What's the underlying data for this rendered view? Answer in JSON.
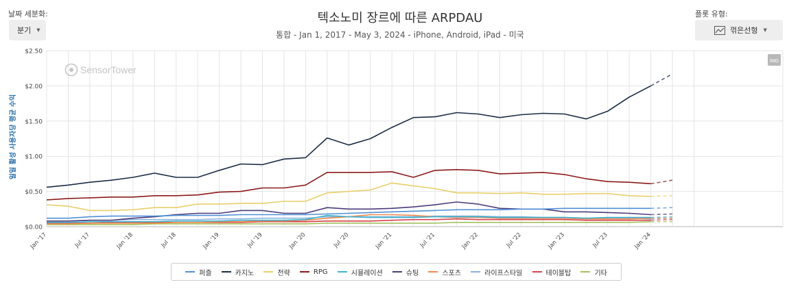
{
  "controls": {
    "granularity_label": "날짜 세분화:",
    "granularity_value": "분기",
    "plot_type_label": "플롯 유형:",
    "plot_type_value": "꺾은선형"
  },
  "watermark": {
    "brand": "SensorTower",
    "badge": "IMG"
  },
  "chart_data": {
    "type": "line",
    "title": "텍소노미 장르에 따른 ARPDAU",
    "subtitle": "통합 - Jan 1, 2017 - May 3, 2024 - iPhone, Android, iPad - 미국",
    "ylabel": "일일 활성 사용자당 평균 수익",
    "xlabel": "",
    "ylim": [
      0,
      2.5
    ],
    "y_ticks": [
      0,
      0.5,
      1.0,
      1.5,
      2.0,
      2.5
    ],
    "y_tick_labels": [
      "$0.00",
      "$0.50",
      "$1.00",
      "$1.50",
      "$2.00",
      "$2.50"
    ],
    "x_tick_labels": [
      "Jan '17",
      "Jul '17",
      "Jan '18",
      "Jul '18",
      "Jan '19",
      "Jul '19",
      "Jan '20",
      "Jul '20",
      "Jan '21",
      "Jul '21",
      "Jan '22",
      "Jul '22",
      "Jan '23",
      "Jul '23",
      "Jan '24"
    ],
    "x": [
      "2017-01",
      "2017-04",
      "2017-07",
      "2017-10",
      "2018-01",
      "2018-04",
      "2018-07",
      "2018-10",
      "2019-01",
      "2019-04",
      "2019-07",
      "2019-10",
      "2020-01",
      "2020-04",
      "2020-07",
      "2020-10",
      "2021-01",
      "2021-04",
      "2021-07",
      "2021-10",
      "2022-01",
      "2022-04",
      "2022-07",
      "2022-10",
      "2023-01",
      "2023-04",
      "2023-07",
      "2023-10",
      "2024-01",
      "2024-04"
    ],
    "projected_from_index": 28,
    "grid": true,
    "legend_position": "bottom",
    "series": [
      {
        "name": "퍼즐",
        "color": "#4f8fd6",
        "values": [
          0.12,
          0.12,
          0.14,
          0.15,
          0.15,
          0.15,
          0.16,
          0.16,
          0.16,
          0.17,
          0.17,
          0.17,
          0.17,
          0.18,
          0.19,
          0.2,
          0.21,
          0.22,
          0.23,
          0.24,
          0.24,
          0.24,
          0.25,
          0.25,
          0.26,
          0.26,
          0.26,
          0.26,
          0.26,
          0.27
        ]
      },
      {
        "name": "카지노",
        "color": "#1a2b45",
        "values": [
          0.56,
          0.59,
          0.63,
          0.66,
          0.7,
          0.76,
          0.7,
          0.7,
          0.8,
          0.89,
          0.88,
          0.96,
          0.98,
          1.26,
          1.16,
          1.25,
          1.41,
          1.55,
          1.56,
          1.62,
          1.6,
          1.55,
          1.59,
          1.61,
          1.6,
          1.53,
          1.64,
          1.84,
          2.0,
          2.17
        ]
      },
      {
        "name": "전략",
        "color": "#e8cf6a",
        "values": [
          0.31,
          0.29,
          0.23,
          0.23,
          0.24,
          0.27,
          0.27,
          0.32,
          0.32,
          0.33,
          0.33,
          0.36,
          0.36,
          0.48,
          0.5,
          0.52,
          0.62,
          0.58,
          0.54,
          0.48,
          0.48,
          0.47,
          0.48,
          0.46,
          0.46,
          0.47,
          0.47,
          0.44,
          0.43,
          0.44
        ]
      },
      {
        "name": "RPG",
        "color": "#8b1a1a",
        "values": [
          0.38,
          0.4,
          0.41,
          0.42,
          0.42,
          0.44,
          0.44,
          0.45,
          0.49,
          0.5,
          0.55,
          0.55,
          0.59,
          0.77,
          0.77,
          0.77,
          0.78,
          0.7,
          0.8,
          0.81,
          0.8,
          0.75,
          0.76,
          0.77,
          0.74,
          0.68,
          0.64,
          0.63,
          0.61,
          0.66
        ]
      },
      {
        "name": "시뮬레이션",
        "color": "#3eb3d1",
        "values": [
          0.06,
          0.06,
          0.07,
          0.07,
          0.07,
          0.07,
          0.08,
          0.08,
          0.08,
          0.09,
          0.09,
          0.09,
          0.1,
          0.16,
          0.14,
          0.13,
          0.13,
          0.13,
          0.14,
          0.14,
          0.14,
          0.13,
          0.13,
          0.13,
          0.13,
          0.12,
          0.13,
          0.13,
          0.13,
          0.14
        ]
      },
      {
        "name": "슈팅",
        "color": "#4b3a7a",
        "values": [
          0.08,
          0.08,
          0.09,
          0.09,
          0.12,
          0.14,
          0.17,
          0.19,
          0.19,
          0.23,
          0.23,
          0.19,
          0.19,
          0.27,
          0.25,
          0.25,
          0.26,
          0.28,
          0.31,
          0.35,
          0.32,
          0.26,
          0.25,
          0.25,
          0.21,
          0.21,
          0.2,
          0.19,
          0.17,
          0.18
        ]
      },
      {
        "name": "스포츠",
        "color": "#f08a4b",
        "values": [
          0.04,
          0.04,
          0.05,
          0.05,
          0.05,
          0.05,
          0.06,
          0.06,
          0.07,
          0.07,
          0.08,
          0.08,
          0.09,
          0.12,
          0.14,
          0.17,
          0.17,
          0.16,
          0.14,
          0.13,
          0.13,
          0.12,
          0.12,
          0.12,
          0.12,
          0.11,
          0.11,
          0.11,
          0.12,
          0.12
        ]
      },
      {
        "name": "라이프스타일",
        "color": "#8ab3de",
        "values": [
          0.08,
          0.08,
          0.09,
          0.09,
          0.1,
          0.1,
          0.1,
          0.1,
          0.11,
          0.11,
          0.12,
          0.12,
          0.12,
          0.14,
          0.14,
          0.14,
          0.14,
          0.14,
          0.15,
          0.15,
          0.15,
          0.14,
          0.14,
          0.13,
          0.13,
          0.12,
          0.12,
          0.12,
          0.11,
          0.12
        ]
      },
      {
        "name": "테이블탑",
        "color": "#d6404a",
        "values": [
          0.05,
          0.05,
          0.05,
          0.06,
          0.06,
          0.06,
          0.06,
          0.06,
          0.06,
          0.06,
          0.07,
          0.07,
          0.07,
          0.08,
          0.08,
          0.08,
          0.09,
          0.1,
          0.1,
          0.11,
          0.1,
          0.1,
          0.1,
          0.1,
          0.1,
          0.09,
          0.09,
          0.09,
          0.09,
          0.1
        ]
      },
      {
        "name": "기타",
        "color": "#a4c15c",
        "values": [
          0.03,
          0.03,
          0.03,
          0.03,
          0.03,
          0.04,
          0.04,
          0.04,
          0.04,
          0.04,
          0.04,
          0.04,
          0.04,
          0.05,
          0.05,
          0.05,
          0.05,
          0.05,
          0.05,
          0.06,
          0.06,
          0.06,
          0.06,
          0.06,
          0.06,
          0.06,
          0.06,
          0.06,
          0.07,
          0.07
        ]
      }
    ]
  }
}
